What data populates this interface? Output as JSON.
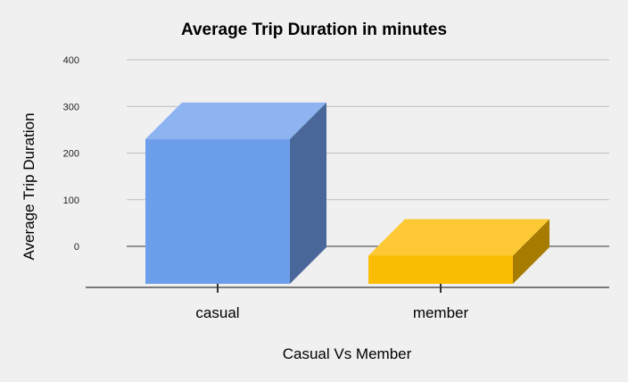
{
  "chart_data": {
    "type": "bar",
    "title": "Average Trip Duration in minutes",
    "xlabel": "Casual Vs Member",
    "ylabel": "Average Trip Duration",
    "categories": [
      "casual",
      "member"
    ],
    "values": [
      230,
      -20
    ],
    "ylim": [
      0,
      400
    ],
    "yticks": [
      0,
      100,
      200,
      300,
      400
    ],
    "grid": true,
    "legend": "none",
    "three_d": true,
    "colors": {
      "front": [
        "#6d9eeb",
        "#fbbc04"
      ],
      "top": [
        "#8db3f0",
        "#fcc934"
      ],
      "side": [
        "#4a6799",
        "#a67c00"
      ],
      "grid": "#bdbdbd",
      "axis": "#333333",
      "background": "#f0f0f0"
    }
  }
}
